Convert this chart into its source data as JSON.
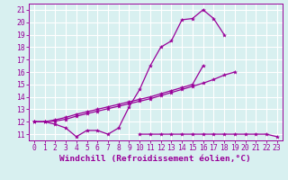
{
  "xlabel": "Windchill (Refroidissement éolien,°C)",
  "x_values": [
    0,
    1,
    2,
    3,
    4,
    5,
    6,
    7,
    8,
    9,
    10,
    11,
    12,
    13,
    14,
    15,
    16,
    17,
    18,
    19,
    20,
    21,
    22,
    23
  ],
  "line1_y": [
    12,
    12,
    11.8,
    11.5,
    10.8,
    11.3,
    11.3,
    11.0,
    11.5,
    13.2,
    14.6,
    16.5,
    18.0,
    18.5,
    20.2,
    20.3,
    21.0,
    20.3,
    19.0,
    null,
    null,
    null,
    null,
    null
  ],
  "line2_y": [
    12.0,
    12.0,
    12.15,
    12.35,
    12.6,
    12.8,
    13.0,
    13.2,
    13.4,
    13.6,
    13.8,
    14.0,
    14.25,
    14.5,
    14.75,
    15.0,
    16.5,
    null,
    null,
    null,
    null,
    null,
    null,
    null
  ],
  "line3_y": [
    12.0,
    12.0,
    12.05,
    12.2,
    12.45,
    12.65,
    12.85,
    13.05,
    13.25,
    13.45,
    13.65,
    13.85,
    14.1,
    14.35,
    14.6,
    14.85,
    15.1,
    15.4,
    15.75,
    16.0,
    null,
    null,
    null,
    null
  ],
  "line4_y": [
    null,
    null,
    null,
    null,
    null,
    null,
    null,
    null,
    null,
    null,
    11.0,
    11.0,
    11.0,
    11.0,
    11.0,
    11.0,
    11.0,
    11.0,
    11.0,
    11.0,
    11.0,
    11.0,
    11.0,
    10.8
  ],
  "line_color": "#990099",
  "bg_color": "#d8f0f0",
  "grid_color": "#ffffff",
  "ylim": [
    10.5,
    21.5
  ],
  "xlim": [
    -0.5,
    23.5
  ],
  "yticks": [
    11,
    12,
    13,
    14,
    15,
    16,
    17,
    18,
    19,
    20,
    21
  ],
  "xticks": [
    0,
    1,
    2,
    3,
    4,
    5,
    6,
    7,
    8,
    9,
    10,
    11,
    12,
    13,
    14,
    15,
    16,
    17,
    18,
    19,
    20,
    21,
    22,
    23
  ],
  "tick_fontsize": 5.8,
  "xlabel_fontsize": 6.8
}
